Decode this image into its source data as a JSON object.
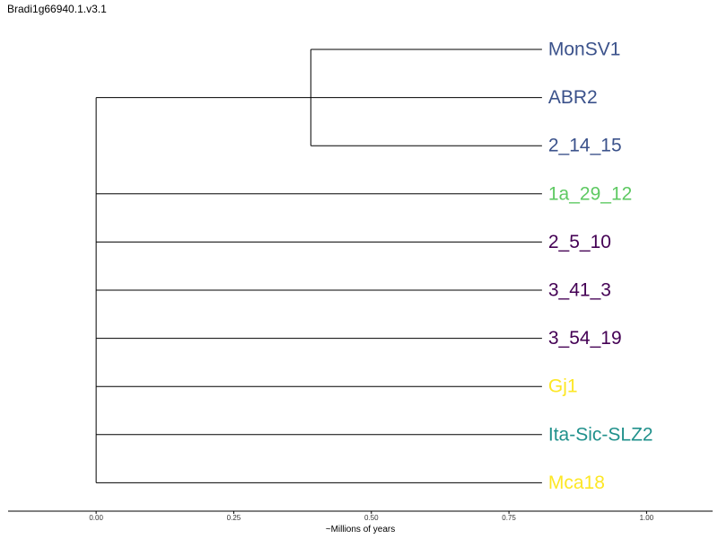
{
  "chart_data": {
    "type": "dendrogram",
    "title": "Bradi1g66940.1.v3.1",
    "xlabel": "~Millions of years",
    "xlim": [
      -0.16,
      1.12
    ],
    "xticks": [
      0.0,
      0.25,
      0.5,
      0.75,
      1.0
    ],
    "xtick_labels": [
      "0.00",
      "0.25",
      "0.50",
      "0.75",
      "1.00"
    ],
    "root_x": 0.0,
    "leaf_x": 0.81,
    "grid": false,
    "leaves": [
      {
        "label": "MonSV1",
        "color": "#3b528b"
      },
      {
        "label": "ABR2",
        "color": "#3b528b"
      },
      {
        "label": "2_14_15",
        "color": "#3b528b"
      },
      {
        "label": "1a_29_12",
        "color": "#5ec962"
      },
      {
        "label": "2_5_10",
        "color": "#440154"
      },
      {
        "label": "3_41_3",
        "color": "#440154"
      },
      {
        "label": "3_54_19",
        "color": "#440154"
      },
      {
        "label": "Gj1",
        "color": "#fde725"
      },
      {
        "label": "Ita-Sic-SLZ2",
        "color": "#21918c"
      },
      {
        "label": "Mca18",
        "color": "#fde725"
      }
    ],
    "clades": [
      {
        "members": [
          "MonSV1",
          "ABR2",
          "2_14_15"
        ],
        "node_x": 0.39,
        "attach_at": "ABR2"
      }
    ]
  }
}
